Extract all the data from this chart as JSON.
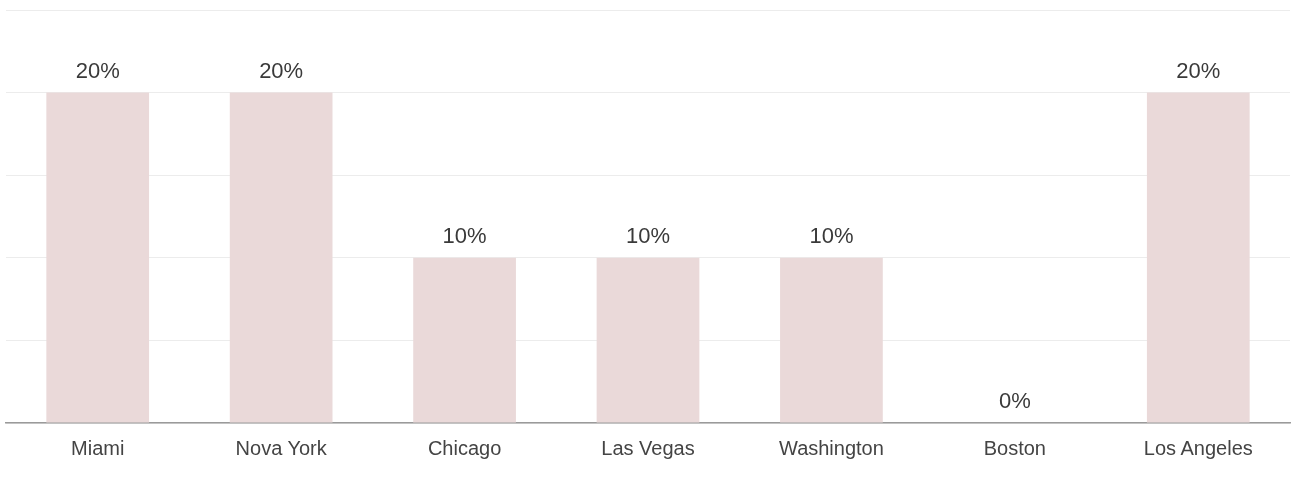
{
  "chart_data": {
    "type": "bar",
    "categories": [
      "Miami",
      "Nova York",
      "Chicago",
      "Las Vegas",
      "Washington",
      "Boston",
      "Los Angeles"
    ],
    "values": [
      20,
      20,
      10,
      10,
      10,
      0,
      20
    ],
    "value_labels": [
      "20%",
      "20%",
      "10%",
      "10%",
      "10%",
      "0%",
      "20%"
    ],
    "color": "#ead9d9",
    "ylim": [
      0,
      25
    ],
    "yticks": [
      {
        "value": 0,
        "label": null
      },
      {
        "value": 5,
        "label": null
      },
      {
        "value": 10,
        "label": null
      },
      {
        "value": 15,
        "label": null
      },
      {
        "value": 20,
        "label": null
      },
      {
        "value": 25,
        "label": null
      }
    ],
    "grid": "y",
    "tick_labels": "x",
    "legend": false
  }
}
